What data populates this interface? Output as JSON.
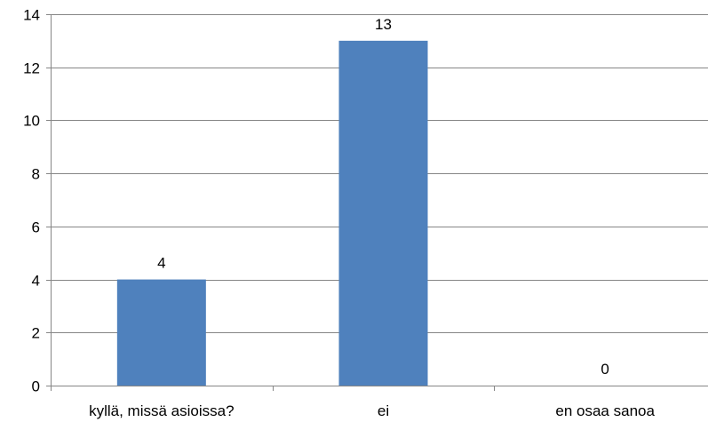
{
  "chart_data": {
    "type": "bar",
    "categories": [
      "kyllä, missä asioissa?",
      "ei",
      "en osaa sanoa"
    ],
    "values": [
      4,
      13,
      0
    ],
    "data_labels": [
      "4",
      "13",
      "0"
    ],
    "ylim": [
      0,
      14
    ],
    "yticks": [
      0,
      2,
      4,
      6,
      8,
      10,
      12,
      14
    ],
    "grid": true,
    "legend": "none",
    "title": "",
    "xlabel": "",
    "ylabel": "",
    "colors": {
      "bar": "#4f81bd",
      "grid": "#868686",
      "axis": "#868686",
      "text": "#000000"
    }
  }
}
